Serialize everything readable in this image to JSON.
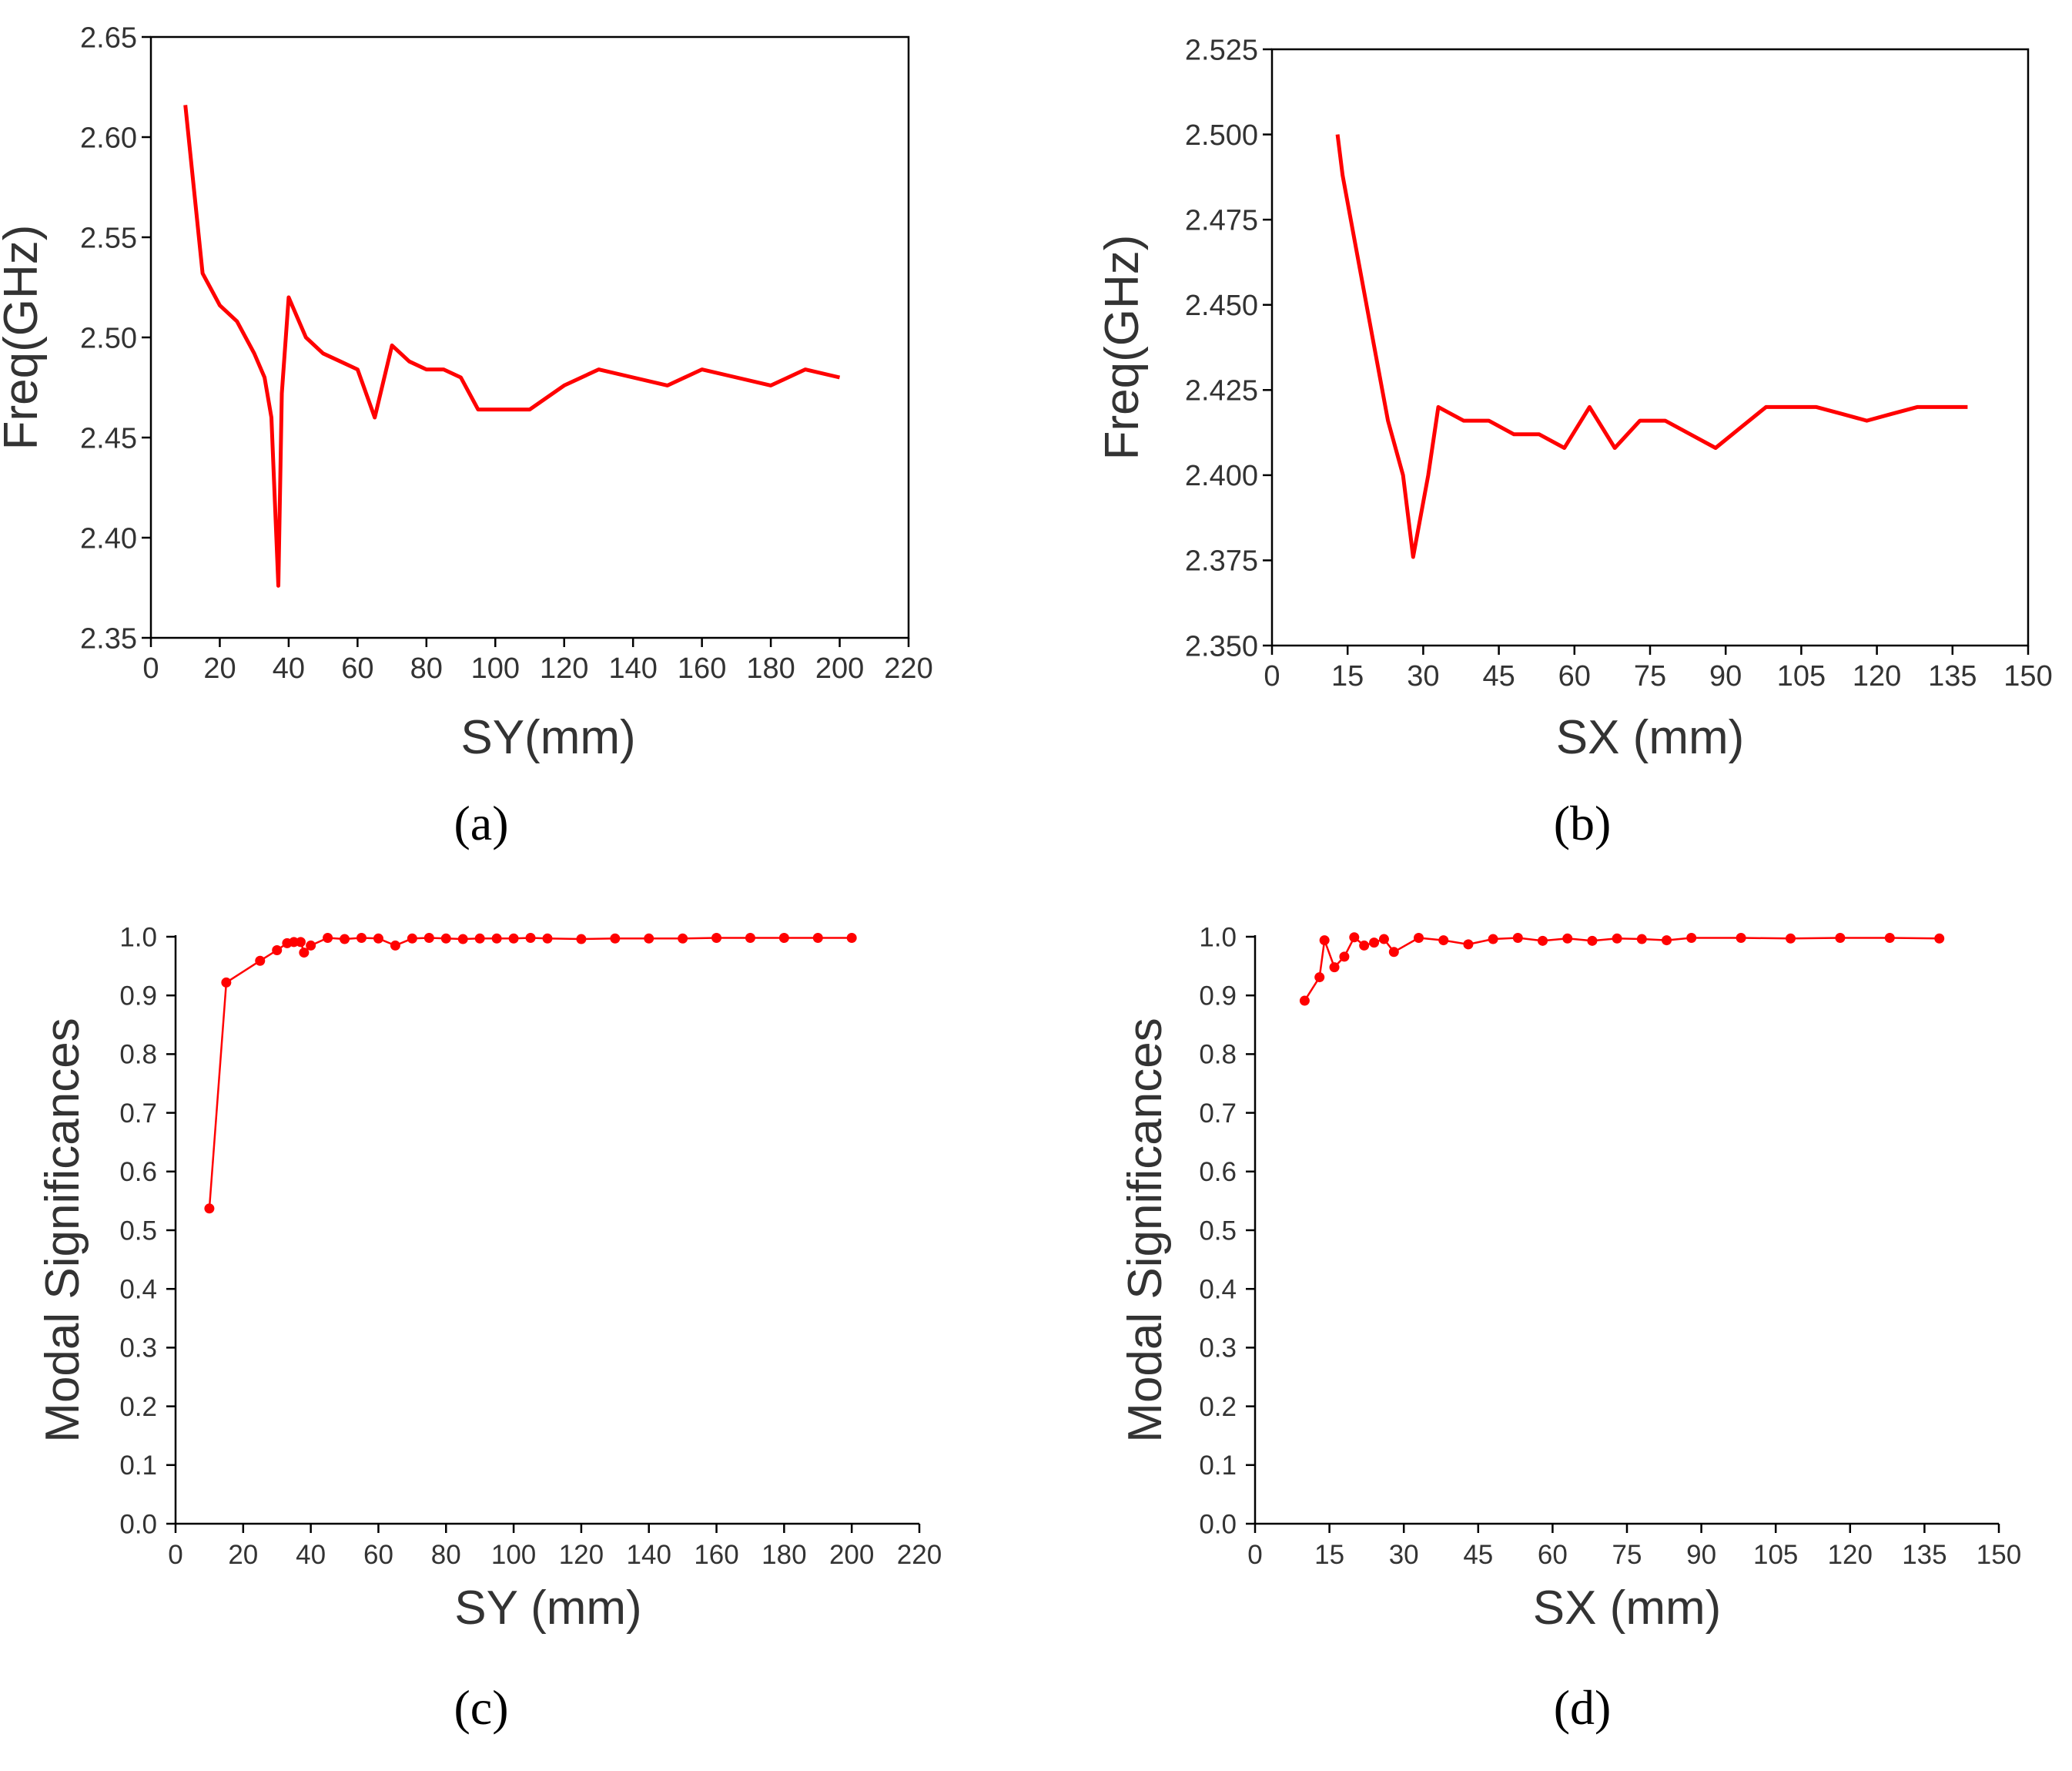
{
  "colors": {
    "series": "#ff0000",
    "axis": "#000000",
    "text": "#333333"
  },
  "chart_data": [
    {
      "panel": "a",
      "caption": "(a)",
      "type": "line",
      "framed": true,
      "markers": false,
      "xlabel": "SY(mm)",
      "ylabel": "Freq(GHz)",
      "xlim": [
        0,
        220
      ],
      "ylim": [
        2.35,
        2.65
      ],
      "xticks": [
        0,
        20,
        40,
        60,
        80,
        100,
        120,
        140,
        160,
        180,
        200,
        220
      ],
      "yticks": [
        2.35,
        2.4,
        2.45,
        2.5,
        2.55,
        2.6,
        2.65
      ],
      "ytick_labels": [
        "2.35",
        "2.40",
        "2.45",
        "2.50",
        "2.55",
        "2.60",
        "2.65"
      ],
      "series": [
        {
          "name": "Freq",
          "x": [
            10,
            15,
            20,
            25,
            30,
            33,
            35,
            37,
            38,
            40,
            45,
            50,
            55,
            60,
            65,
            70,
            75,
            80,
            85,
            90,
            95,
            100,
            105,
            110,
            120,
            130,
            140,
            150,
            160,
            170,
            180,
            190,
            200
          ],
          "y": [
            2.616,
            2.532,
            2.516,
            2.508,
            2.492,
            2.48,
            2.46,
            2.376,
            2.472,
            2.52,
            2.5,
            2.492,
            2.488,
            2.484,
            2.46,
            2.496,
            2.488,
            2.484,
            2.484,
            2.48,
            2.464,
            2.464,
            2.464,
            2.464,
            2.476,
            2.484,
            2.48,
            2.476,
            2.484,
            2.48,
            2.476,
            2.484,
            2.48
          ]
        }
      ]
    },
    {
      "panel": "b",
      "caption": "(b)",
      "type": "line",
      "framed": true,
      "markers": false,
      "xlabel": "SX (mm)",
      "ylabel": "Freq(GHz)",
      "xlim": [
        0,
        150
      ],
      "ylim": [
        2.35,
        2.525
      ],
      "xticks": [
        0,
        15,
        30,
        45,
        60,
        75,
        90,
        105,
        120,
        135,
        150
      ],
      "yticks": [
        2.35,
        2.375,
        2.4,
        2.425,
        2.45,
        2.475,
        2.5,
        2.525
      ],
      "ytick_labels": [
        "2.350",
        "2.375",
        "2.400",
        "2.425",
        "2.450",
        "2.475",
        "2.500",
        "2.525"
      ],
      "series": [
        {
          "name": "Freq",
          "x": [
            13,
            14,
            17,
            20,
            23,
            26,
            28,
            31,
            33,
            38,
            43,
            48,
            53,
            58,
            63,
            68,
            73,
            78,
            83,
            88,
            93,
            98,
            103,
            108,
            113,
            118,
            123,
            128,
            133,
            138
          ],
          "y": [
            2.5,
            2.488,
            2.464,
            2.44,
            2.416,
            2.4,
            2.376,
            2.4,
            2.42,
            2.416,
            2.416,
            2.412,
            2.412,
            2.408,
            2.42,
            2.408,
            2.416,
            2.416,
            2.412,
            2.408,
            2.414,
            2.42,
            2.42,
            2.42,
            2.418,
            2.416,
            2.418,
            2.42,
            2.42,
            2.42
          ]
        }
      ]
    },
    {
      "panel": "c",
      "caption": "(c)",
      "type": "line",
      "framed": false,
      "markers": true,
      "xlabel": "SY (mm)",
      "ylabel": "Modal Significances",
      "xlim": [
        0,
        220
      ],
      "ylim": [
        0,
        1.0
      ],
      "xticks": [
        0,
        20,
        40,
        60,
        80,
        100,
        120,
        140,
        160,
        180,
        200,
        220
      ],
      "yticks": [
        0.0,
        0.1,
        0.2,
        0.3,
        0.4,
        0.5,
        0.6,
        0.7,
        0.8,
        0.9,
        1.0
      ],
      "ytick_labels": [
        "0.0",
        "0.1",
        "0.2",
        "0.3",
        "0.4",
        "0.5",
        "0.6",
        "0.7",
        "0.8",
        "0.9",
        "1.0"
      ],
      "series": [
        {
          "name": "Modal Significance",
          "x": [
            10,
            15,
            25,
            30,
            33,
            35,
            37,
            38,
            40,
            45,
            50,
            55,
            60,
            65,
            70,
            75,
            80,
            85,
            90,
            95,
            100,
            105,
            110,
            120,
            130,
            140,
            150,
            160,
            170,
            180,
            190,
            200
          ],
          "y": [
            0.537,
            0.922,
            0.959,
            0.977,
            0.989,
            0.991,
            0.991,
            0.973,
            0.985,
            0.998,
            0.996,
            0.998,
            0.997,
            0.985,
            0.997,
            0.998,
            0.997,
            0.996,
            0.997,
            0.997,
            0.997,
            0.998,
            0.997,
            0.996,
            0.997,
            0.997,
            0.997,
            0.998,
            0.998,
            0.998,
            0.998,
            0.998
          ]
        }
      ]
    },
    {
      "panel": "d",
      "caption": "(d)",
      "type": "line",
      "framed": false,
      "markers": true,
      "xlabel": "SX (mm)",
      "ylabel": "Modal Significances",
      "xlim": [
        0,
        150
      ],
      "ylim": [
        0,
        1.0
      ],
      "xticks": [
        0,
        15,
        30,
        45,
        60,
        75,
        90,
        105,
        120,
        135,
        150
      ],
      "yticks": [
        0.0,
        0.1,
        0.2,
        0.3,
        0.4,
        0.5,
        0.6,
        0.7,
        0.8,
        0.9,
        1.0
      ],
      "ytick_labels": [
        "0.0",
        "0.1",
        "0.2",
        "0.3",
        "0.4",
        "0.5",
        "0.6",
        "0.7",
        "0.8",
        "0.9",
        "1.0"
      ],
      "series": [
        {
          "name": "Modal Significance",
          "x": [
            10,
            13,
            14,
            16,
            18,
            20,
            22,
            24,
            26,
            28,
            33,
            38,
            43,
            48,
            53,
            58,
            63,
            68,
            73,
            78,
            83,
            88,
            98,
            108,
            118,
            128,
            138
          ],
          "y": [
            0.891,
            0.931,
            0.994,
            0.948,
            0.966,
            0.999,
            0.985,
            0.99,
            0.996,
            0.974,
            0.998,
            0.994,
            0.987,
            0.996,
            0.998,
            0.993,
            0.997,
            0.993,
            0.997,
            0.996,
            0.994,
            0.998,
            0.998,
            0.997,
            0.998,
            0.998,
            0.997
          ]
        }
      ]
    }
  ]
}
